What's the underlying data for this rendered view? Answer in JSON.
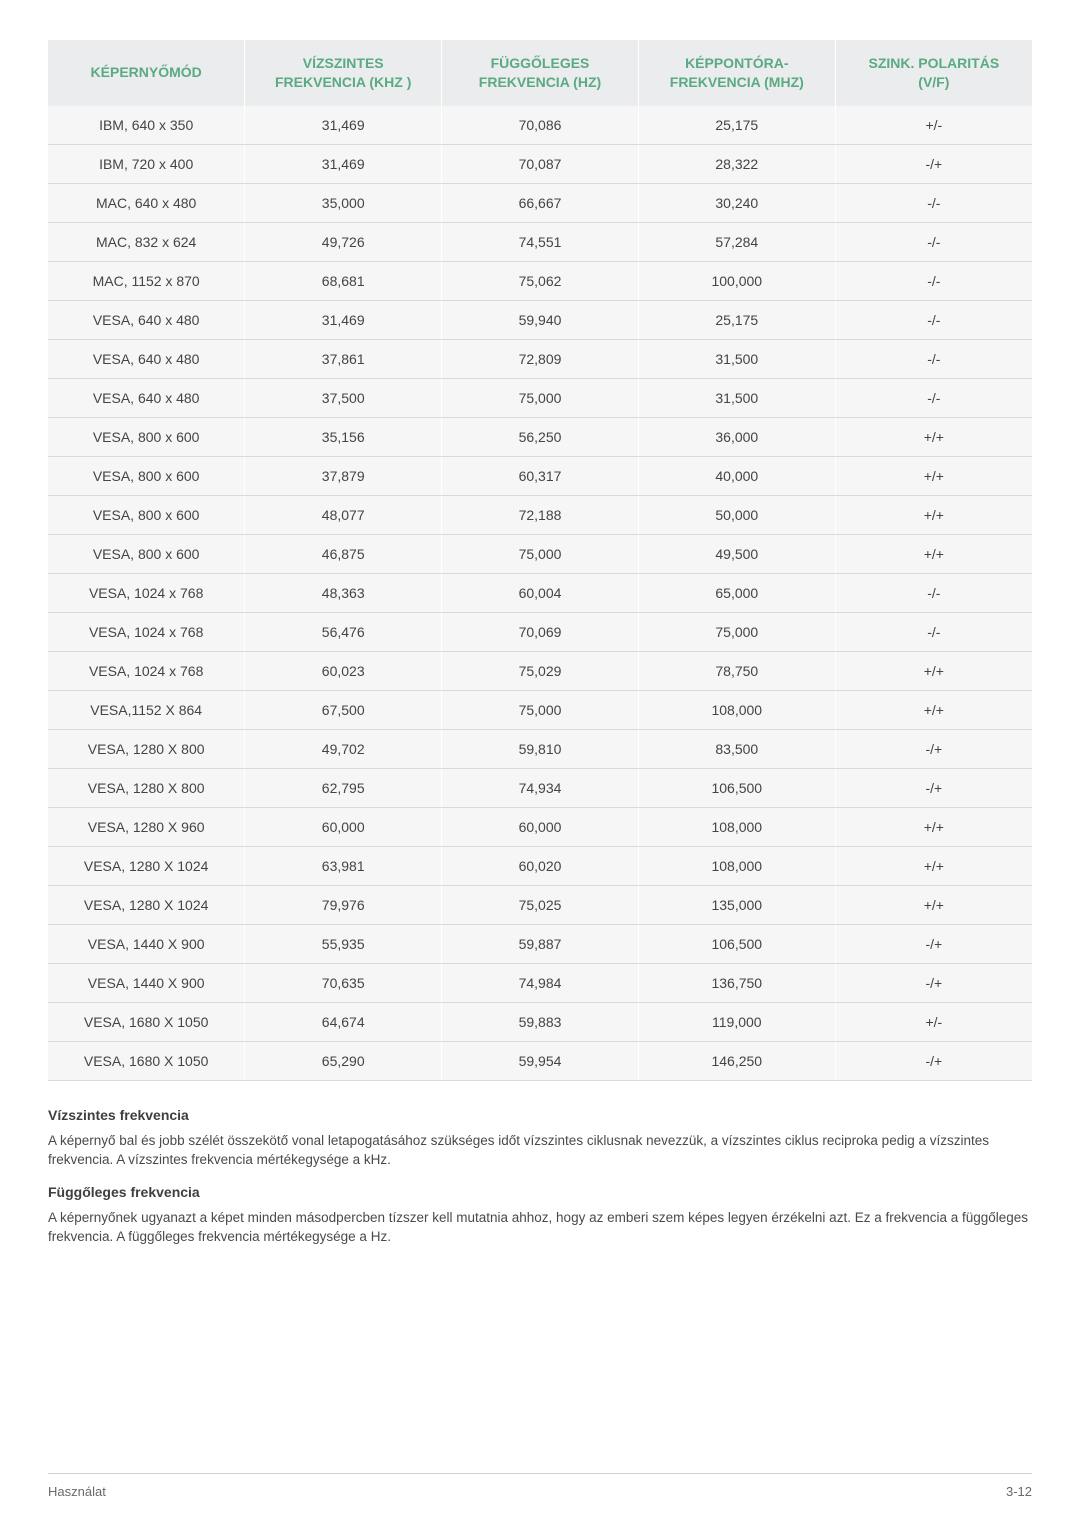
{
  "table": {
    "columns": [
      "KÉPERNYŐMÓD",
      "VÍZSZINTES FREKVENCIA (KHZ )",
      "FÜGGŐLEGES FREKVENCIA (HZ)",
      "KÉPPONTÓRA-FREKVENCIA (MHZ)",
      "SZINK. POLARITÁS (V/F)"
    ],
    "column_widths_pct": [
      20,
      20,
      20,
      20,
      20
    ],
    "header_bg": "#ebeced",
    "header_color": "#5aaa82",
    "row_bg": "#f6f6f7",
    "row_border": "#d9dadb",
    "rows": [
      [
        "IBM, 640 x 350",
        "31,469",
        "70,086",
        "25,175",
        "+/-"
      ],
      [
        "IBM, 720 x 400",
        "31,469",
        "70,087",
        "28,322",
        "-/+"
      ],
      [
        "MAC, 640 x 480",
        "35,000",
        "66,667",
        "30,240",
        "-/-"
      ],
      [
        "MAC, 832 x 624",
        "49,726",
        "74,551",
        "57,284",
        "-/-"
      ],
      [
        "MAC, 1152 x 870",
        "68,681",
        "75,062",
        "100,000",
        "-/-"
      ],
      [
        "VESA, 640 x 480",
        "31,469",
        "59,940",
        "25,175",
        "-/-"
      ],
      [
        "VESA, 640 x 480",
        "37,861",
        "72,809",
        "31,500",
        "-/-"
      ],
      [
        "VESA, 640 x 480",
        "37,500",
        "75,000",
        "31,500",
        "-/-"
      ],
      [
        "VESA, 800 x 600",
        "35,156",
        "56,250",
        "36,000",
        "+/+"
      ],
      [
        "VESA, 800 x 600",
        "37,879",
        "60,317",
        "40,000",
        "+/+"
      ],
      [
        "VESA, 800 x 600",
        "48,077",
        "72,188",
        "50,000",
        "+/+"
      ],
      [
        "VESA, 800 x 600",
        "46,875",
        "75,000",
        "49,500",
        "+/+"
      ],
      [
        "VESA, 1024 x 768",
        "48,363",
        "60,004",
        "65,000",
        "-/-"
      ],
      [
        "VESA, 1024 x 768",
        "56,476",
        "70,069",
        "75,000",
        "-/-"
      ],
      [
        "VESA, 1024 x 768",
        "60,023",
        "75,029",
        "78,750",
        "+/+"
      ],
      [
        "VESA,1152 X 864",
        "67,500",
        "75,000",
        "108,000",
        "+/+"
      ],
      [
        "VESA, 1280 X 800",
        "49,702",
        "59,810",
        "83,500",
        "-/+"
      ],
      [
        "VESA, 1280 X 800",
        "62,795",
        "74,934",
        "106,500",
        "-/+"
      ],
      [
        "VESA, 1280 X 960",
        "60,000",
        "60,000",
        "108,000",
        "+/+"
      ],
      [
        "VESA, 1280 X 1024",
        "63,981",
        "60,020",
        "108,000",
        "+/+"
      ],
      [
        "VESA, 1280 X 1024",
        "79,976",
        "75,025",
        "135,000",
        "+/+"
      ],
      [
        "VESA, 1440 X 900",
        "55,935",
        "59,887",
        "106,500",
        "-/+"
      ],
      [
        "VESA, 1440 X 900",
        "70,635",
        "74,984",
        "136,750",
        "-/+"
      ],
      [
        "VESA, 1680 X 1050",
        "64,674",
        "59,883",
        "119,000",
        "+/-"
      ],
      [
        "VESA, 1680 X 1050",
        "65,290",
        "59,954",
        "146,250",
        "-/+"
      ]
    ]
  },
  "sections": [
    {
      "heading": "Vízszintes frekvencia",
      "body": "A képernyő bal és jobb szélét összekötő vonal letapogatásához szükséges időt vízszintes ciklusnak nevezzük, a vízszintes ciklus reciproka pedig a vízszintes frekvencia. A vízszintes frekvencia mértékegysége a kHz."
    },
    {
      "heading": "Függőleges frekvencia",
      "body": "A képernyőnek ugyanazt a képet minden másodpercben tízszer kell mutatnia ahhoz, hogy az emberi szem képes legyen érzékelni azt. Ez a frekvencia a függőleges frekvencia. A függőleges frekvencia mértékegysége a Hz."
    }
  ],
  "footer": {
    "left": "Használat",
    "right": "3-12"
  }
}
